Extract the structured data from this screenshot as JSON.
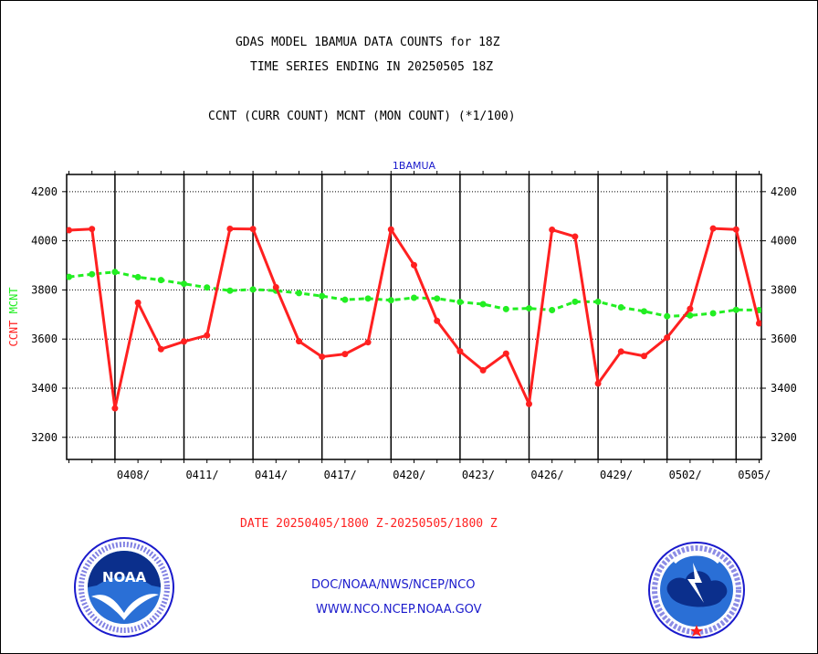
{
  "header": {
    "title1": "GDAS MODEL 1BAMUA DATA COUNTS for 18Z",
    "title2": "TIME SERIES ENDING IN 20250505 18Z",
    "subtitle": "CCNT (CURR COUNT) MCNT (MON COUNT) (*1/100)"
  },
  "colors": {
    "ccnt": "#ff2020",
    "mcnt": "#22ee22",
    "blue": "#1a1acc"
  },
  "chart_data": {
    "type": "line",
    "title": "1BAMUA",
    "ylabel_parts": [
      {
        "text": "CCNT",
        "color": "#ff2020"
      },
      {
        "text": "MCNT",
        "color": "#22ee22"
      }
    ],
    "ylim": [
      3110,
      4270
    ],
    "yticks": [
      3200,
      3400,
      3600,
      3800,
      4000,
      4200
    ],
    "xlim": [
      -0.1,
      30.1
    ],
    "xticks": [
      {
        "x": 2,
        "label": "0408/"
      },
      {
        "x": 5,
        "label": "0411/"
      },
      {
        "x": 8,
        "label": "0414/"
      },
      {
        "x": 11,
        "label": "0417/"
      },
      {
        "x": 14,
        "label": "0420/"
      },
      {
        "x": 17,
        "label": "0423/"
      },
      {
        "x": 20,
        "label": "0426/"
      },
      {
        "x": 23,
        "label": "0429/"
      },
      {
        "x": 26,
        "label": "0502/"
      },
      {
        "x": 29,
        "label": "0505/"
      }
    ],
    "grid": true,
    "series": [
      {
        "name": "CCNT",
        "color": "#ff2020",
        "values": [
          4043,
          4048,
          3318,
          3748,
          3559,
          3590,
          3615,
          4049,
          4048,
          3811,
          3591,
          3528,
          3539,
          3587,
          4046,
          3901,
          3674,
          3550,
          3473,
          3541,
          3336,
          4045,
          4017,
          3419,
          3549,
          3531,
          3606,
          3723,
          4050,
          4046,
          3664
        ]
      },
      {
        "name": "MCNT",
        "color": "#22ee22",
        "values": [
          3853,
          3864,
          3873,
          3852,
          3840,
          3825,
          3810,
          3797,
          3802,
          3797,
          3787,
          3775,
          3760,
          3765,
          3758,
          3768,
          3765,
          3751,
          3742,
          3722,
          3725,
          3718,
          3752,
          3752,
          3729,
          3713,
          3693,
          3696,
          3705,
          3719,
          3718
        ]
      }
    ],
    "date_range": "DATE 20250405/1800 Z-20250505/1800 Z"
  },
  "footer": {
    "line1": "DOC/NOAA/NWS/NCEP/NCO",
    "line2": "WWW.NCO.NCEP.NOAA.GOV",
    "noaa_logo_text": "NOAA",
    "nws_logo_text": "NATIONAL WEATHER SERVICE"
  }
}
